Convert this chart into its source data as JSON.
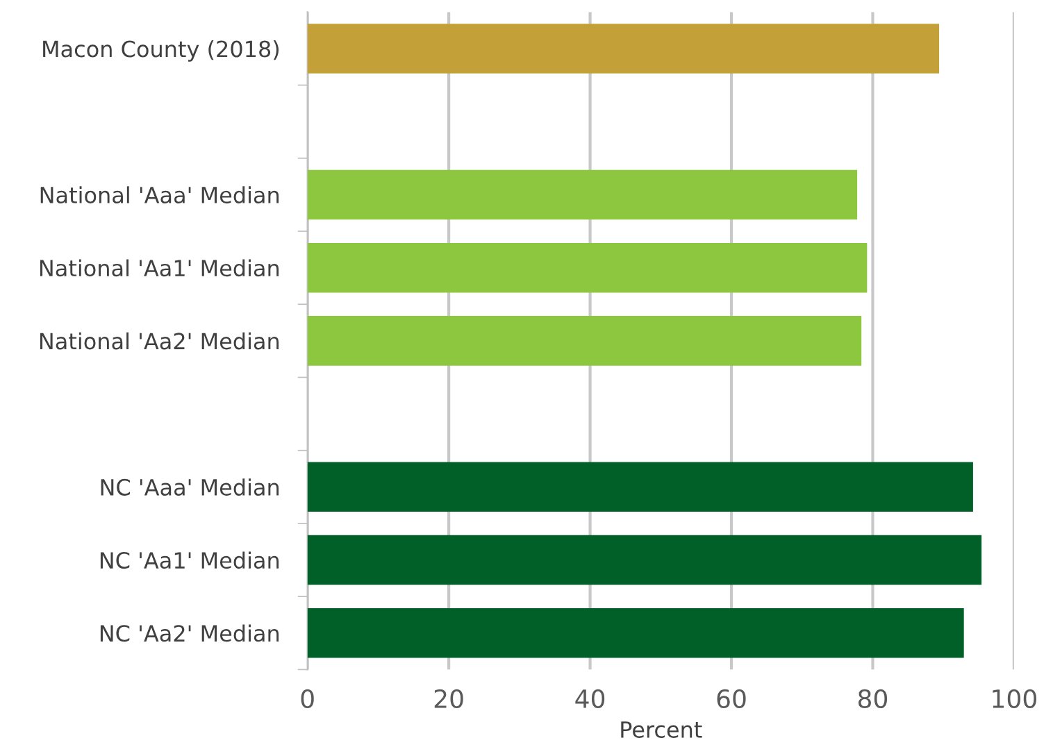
{
  "chart_data": {
    "type": "bar",
    "orientation": "horizontal",
    "xlabel": "Percent",
    "categories": [
      "Macon County (2018)",
      null,
      "National 'Aaa' Median",
      "National 'Aa1' Median",
      "National 'Aa2' Median",
      null,
      "NC 'Aaa' Median",
      "NC 'Aa1' Median",
      "NC 'Aa2' Median"
    ],
    "values": [
      89.4,
      null,
      77.8,
      79.2,
      78.4,
      null,
      94.2,
      95.4,
      92.9
    ],
    "colors": [
      "#c4a038",
      null,
      "#8dc63f",
      "#8dc63f",
      "#8dc63f",
      null,
      "#006028",
      "#006028",
      "#006028"
    ],
    "xlim": [
      0,
      100
    ],
    "xticks": [
      0,
      20,
      40,
      60,
      80,
      100
    ],
    "grid": "x",
    "legend": false
  }
}
